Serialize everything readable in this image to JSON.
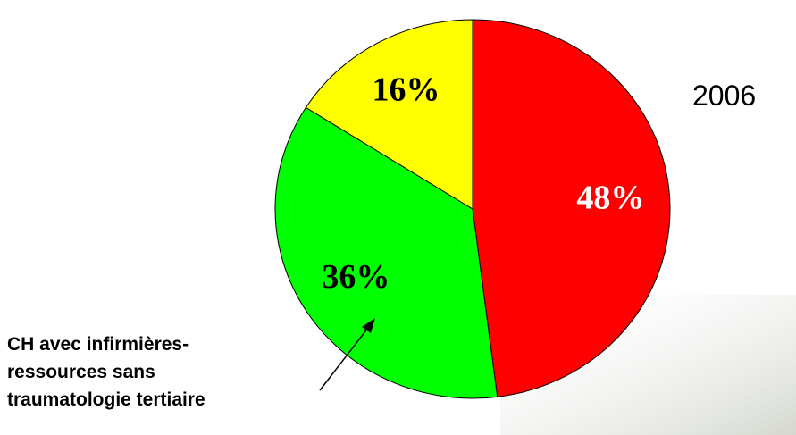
{
  "chart_data": {
    "type": "pie",
    "title": "2006",
    "values": [
      48,
      36,
      16
    ],
    "value_labels": [
      "48%",
      "36%",
      "16%"
    ],
    "colors": [
      "#ff0000",
      "#00ff00",
      "#ffff00"
    ],
    "label_colors": [
      "#ffffff",
      "#000000",
      "#000000"
    ],
    "annotation": [
      "CH avec infirmières-",
      "ressources sans",
      "traumatologie tertiaire"
    ]
  }
}
